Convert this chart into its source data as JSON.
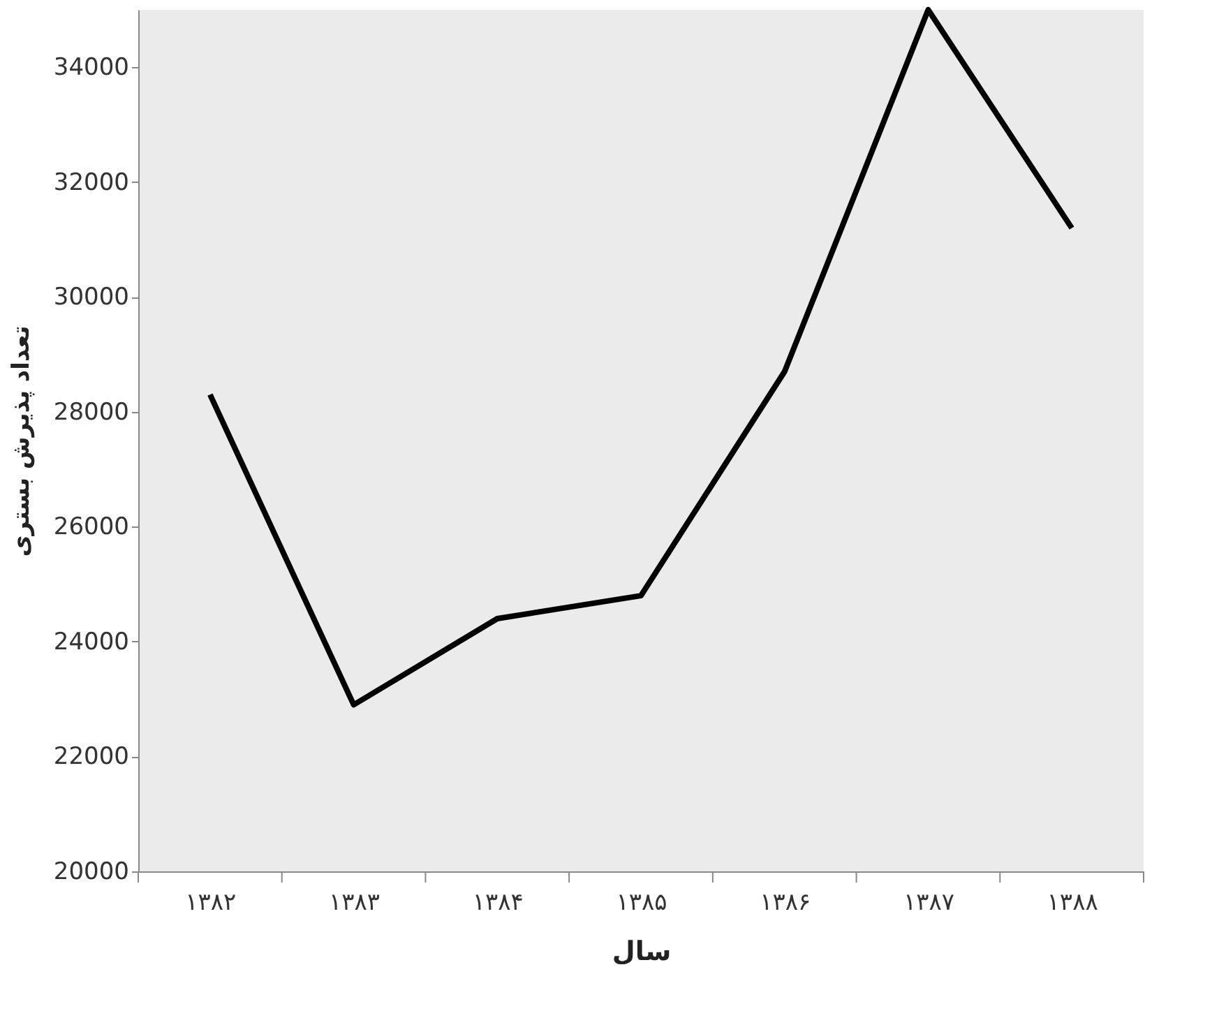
{
  "chart_data": {
    "type": "line",
    "xlabel": "سال",
    "ylabel": "تعداد پذیرش بستری",
    "categories": [
      "۱۳۸۲",
      "۱۳۸۳",
      "۱۳۸۴",
      "۱۳۸۵",
      "۱۳۸۶",
      "۱۳۸۷",
      "۱۳۸۸"
    ],
    "series": [
      {
        "color": "#000000",
        "values": [
          28300,
          22900,
          24400,
          24800,
          28700,
          35000,
          31200
        ]
      }
    ],
    "ylim": [
      20000,
      35000
    ],
    "yticks": [
      20000,
      22000,
      24000,
      26000,
      28000,
      30000,
      32000,
      34000
    ],
    "grid": false,
    "legend": false,
    "marker": "none",
    "line_style": "solid"
  }
}
